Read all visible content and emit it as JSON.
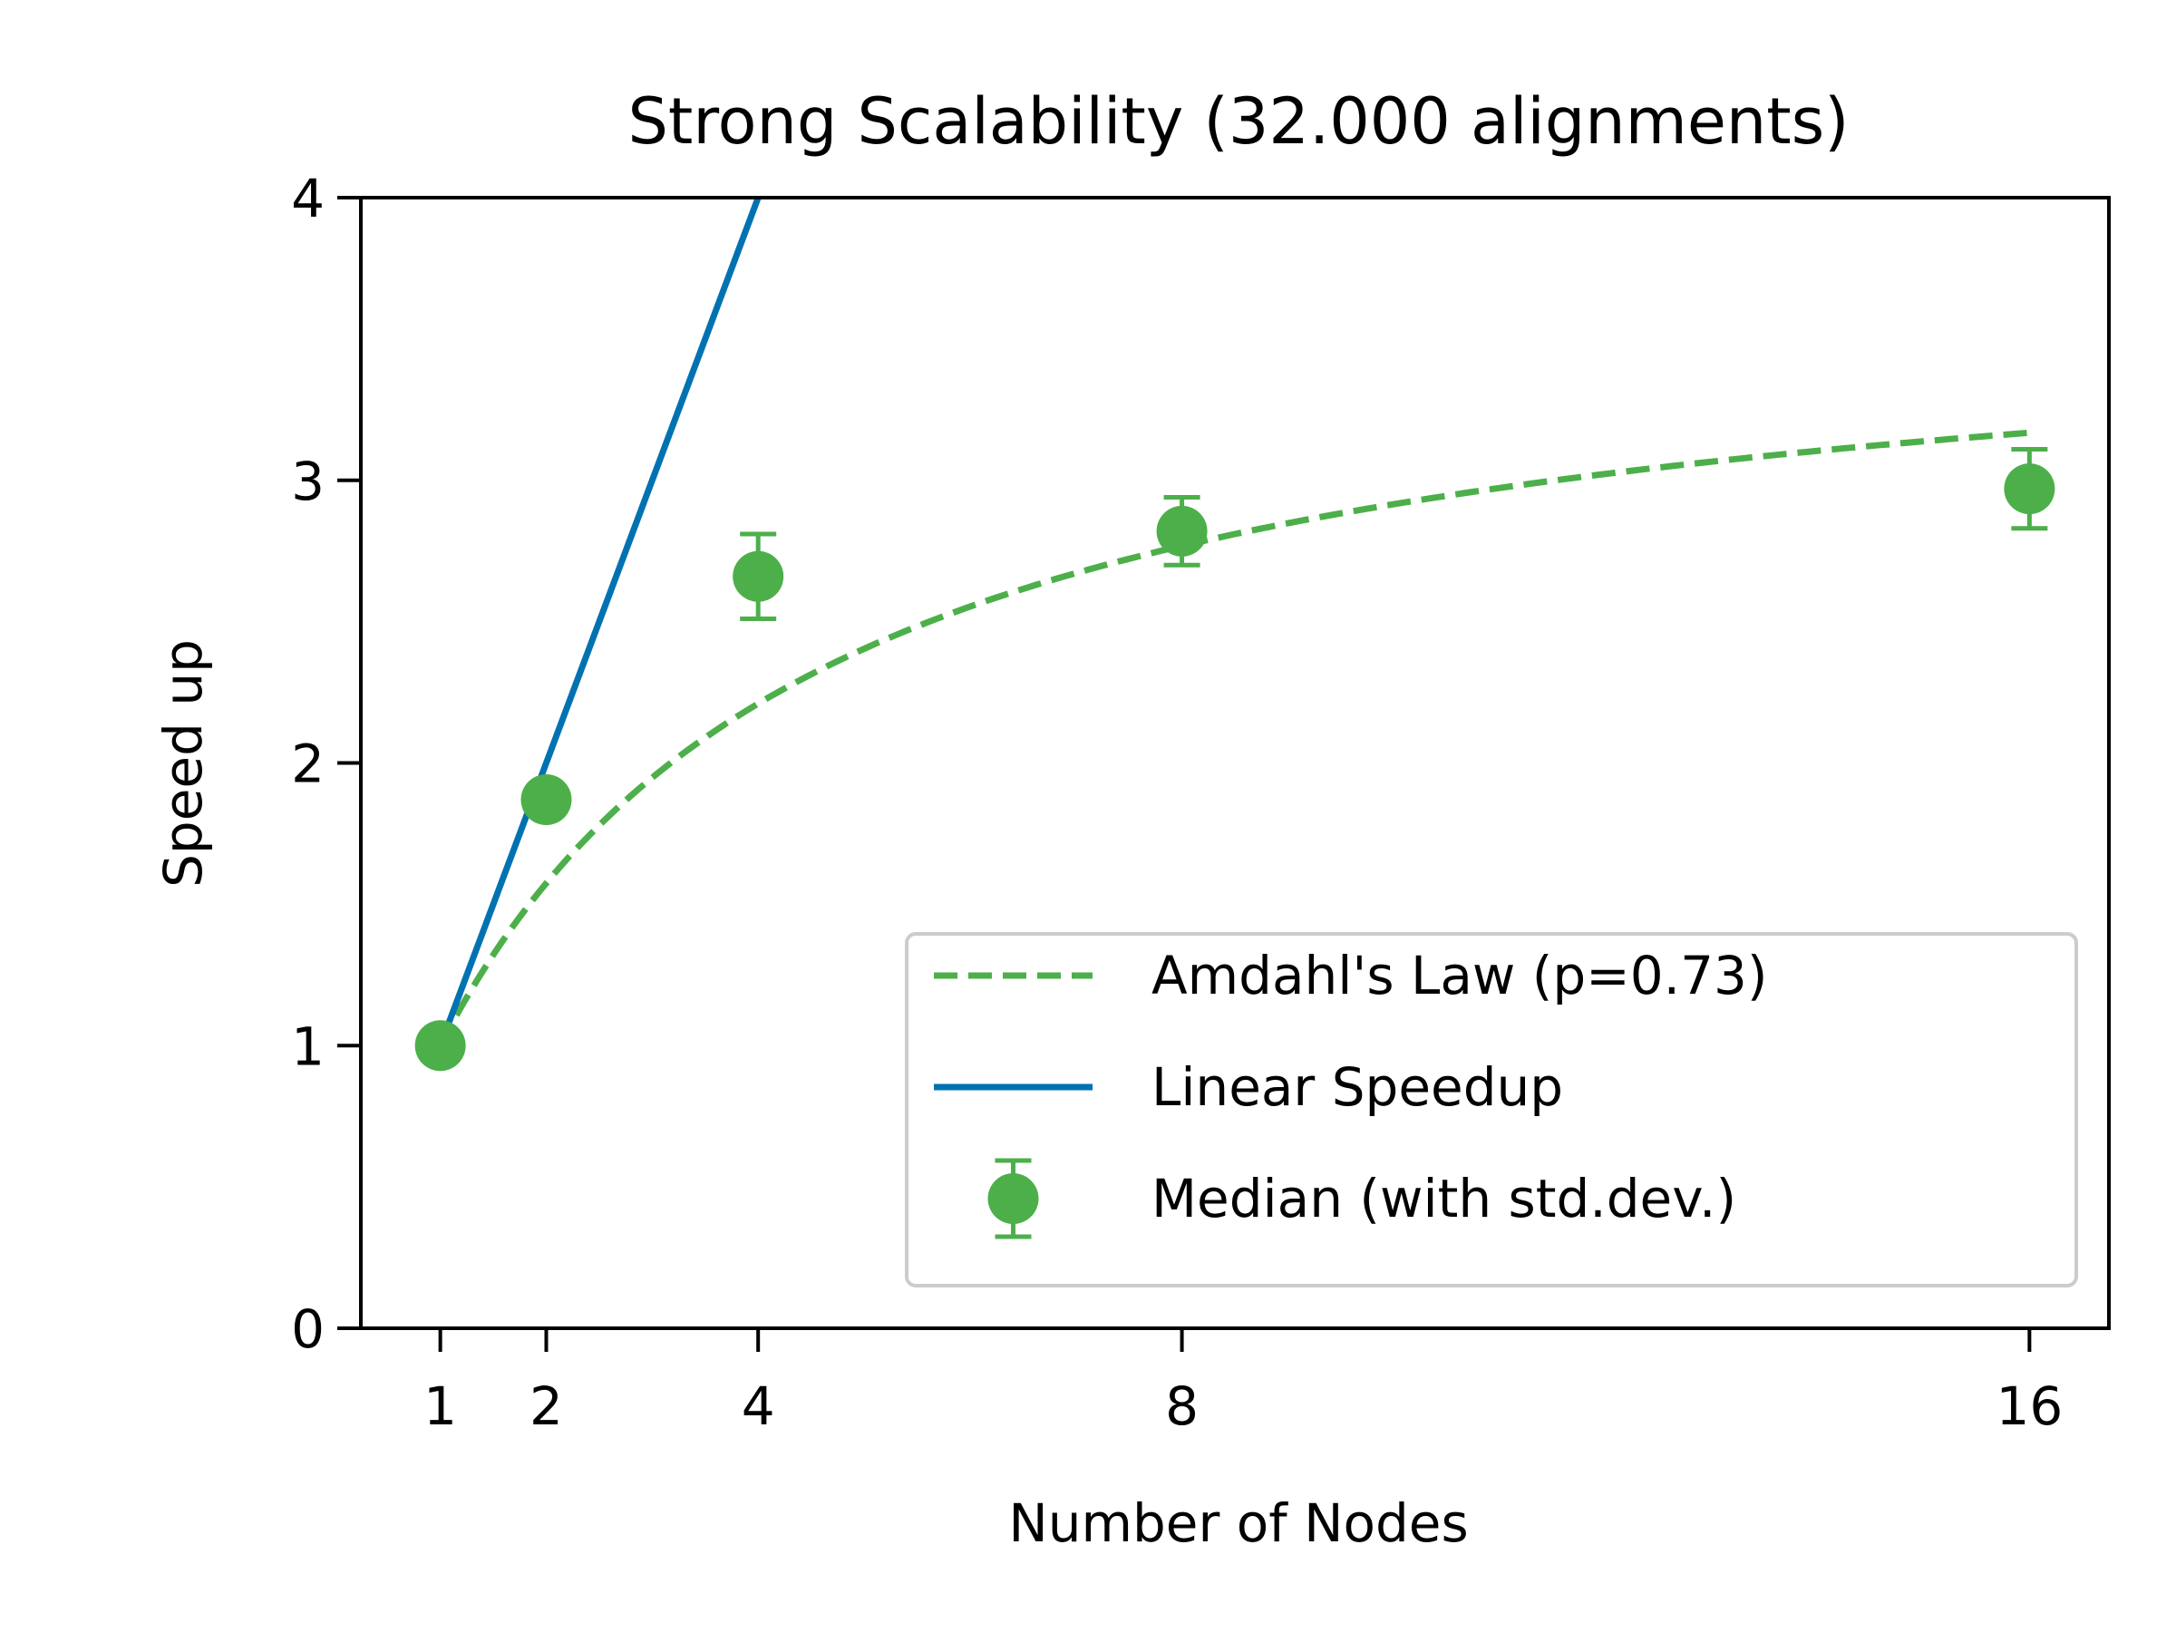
{
  "chart_data": {
    "type": "line",
    "title": "Strong Scalability (32.000 alignments)",
    "xlabel": "Number of Nodes",
    "ylabel": "Speed up",
    "xlim": [
      0.25,
      16.75
    ],
    "ylim": [
      0,
      4
    ],
    "x_ticks": [
      1,
      2,
      4,
      8,
      16
    ],
    "y_ticks": [
      0,
      1,
      2,
      3,
      4
    ],
    "grid": false,
    "legend_position": "lower-right",
    "amdahl": {
      "name": "Amdahl's Law (p=0.73)",
      "p": 0.73,
      "x_range": [
        1,
        16
      ],
      "color": "#4daf4a",
      "style": "dashed"
    },
    "linear": {
      "name": "Linear Speedup",
      "x": [
        1,
        4
      ],
      "y": [
        1,
        4
      ],
      "color": "#0072b2",
      "style": "solid"
    },
    "median": {
      "name": "Median (with std.dev.)",
      "color": "#4daf4a",
      "points": [
        {
          "x": 1,
          "y": 1.0,
          "err": 0.0
        },
        {
          "x": 2,
          "y": 1.87,
          "err": 0.0
        },
        {
          "x": 4,
          "y": 2.66,
          "err": 0.15
        },
        {
          "x": 8,
          "y": 2.82,
          "err": 0.12
        },
        {
          "x": 16,
          "y": 2.97,
          "err": 0.14
        }
      ]
    }
  }
}
